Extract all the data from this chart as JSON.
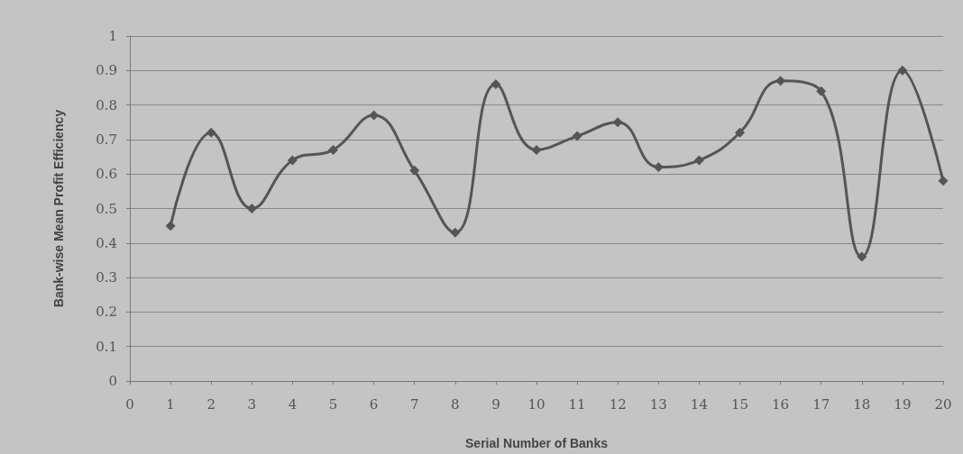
{
  "chart_data": {
    "type": "line",
    "xlabel": "Serial Number of Banks",
    "ylabel": "Bank-wise Mean Profit Efficiency",
    "x": [
      1,
      2,
      3,
      4,
      5,
      6,
      7,
      8,
      9,
      10,
      11,
      12,
      13,
      14,
      15,
      16,
      17,
      18,
      19,
      20
    ],
    "series": [
      {
        "color": "#555555",
        "values": [
          0.45,
          0.72,
          0.5,
          0.64,
          0.67,
          0.77,
          0.61,
          0.43,
          0.86,
          0.67,
          0.71,
          0.75,
          0.62,
          0.64,
          0.72,
          0.87,
          0.84,
          0.36,
          0.9,
          0.58
        ]
      }
    ],
    "xlim": [
      0,
      20
    ],
    "xticks": [
      0,
      1,
      2,
      3,
      4,
      5,
      6,
      7,
      8,
      9,
      10,
      11,
      12,
      13,
      14,
      15,
      16,
      17,
      18,
      19,
      20
    ],
    "ylim": [
      0,
      1
    ],
    "yticks": [
      0,
      0.1,
      0.2,
      0.3,
      0.4,
      0.5,
      0.6,
      0.7,
      0.8,
      0.9,
      1
    ],
    "grid": "y",
    "marker": "diamond",
    "line_style": "solid"
  }
}
